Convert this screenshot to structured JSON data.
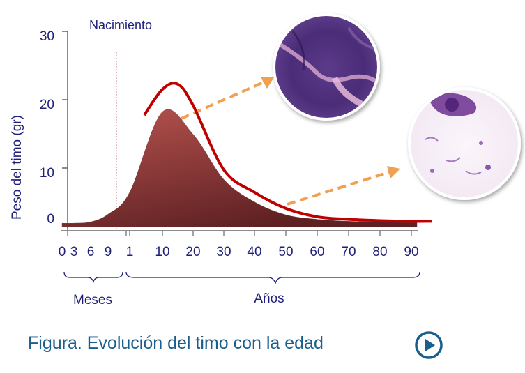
{
  "chart_data": {
    "type": "area",
    "ylabel": "Peso del timo (gr)",
    "ylim": [
      0,
      30
    ],
    "yticks": [
      "30",
      "20",
      "10",
      "0"
    ],
    "month_ticks": [
      "0",
      "3",
      "6",
      "9"
    ],
    "year_ticks": [
      "1",
      "10",
      "20",
      "30",
      "40",
      "50",
      "60",
      "70",
      "80",
      "90"
    ],
    "group_labels": {
      "months": "Meses",
      "years": "Años"
    },
    "birth_label": "Nacimiento",
    "series": [
      {
        "style": "filled-area",
        "points": [
          [
            "0 m",
            0.2
          ],
          [
            "3 m",
            0.2
          ],
          [
            "6 m",
            0.4
          ],
          [
            "9 m",
            1.6
          ],
          [
            "1",
            5
          ],
          [
            "10",
            17.5
          ],
          [
            "20",
            14
          ],
          [
            "30",
            7
          ],
          [
            "40",
            3.5
          ],
          [
            "50",
            1.5
          ],
          [
            "60",
            0.8
          ],
          [
            "70",
            0.5
          ],
          [
            "80",
            0.4
          ],
          [
            "90",
            0.3
          ]
        ]
      },
      {
        "style": "line",
        "points": [
          [
            "5",
            17
          ],
          [
            "10",
            21
          ],
          [
            "15",
            21.8
          ],
          [
            "20",
            18.5
          ],
          [
            "30",
            8.5
          ],
          [
            "40",
            5
          ],
          [
            "50",
            2.5
          ],
          [
            "60",
            1.2
          ],
          [
            "70",
            0.8
          ],
          [
            "80",
            0.6
          ],
          [
            "90",
            0.5
          ]
        ]
      }
    ],
    "colors": {
      "area_top": "#b85450",
      "area_bottom": "#5e2022",
      "line": "#c00000",
      "arrow": "#f0a050",
      "axis": "#666666",
      "text": "#1f1f7a"
    }
  },
  "caption": "Figura. Evolución del timo con la edad",
  "icons": {
    "play": "play-circle-icon"
  }
}
